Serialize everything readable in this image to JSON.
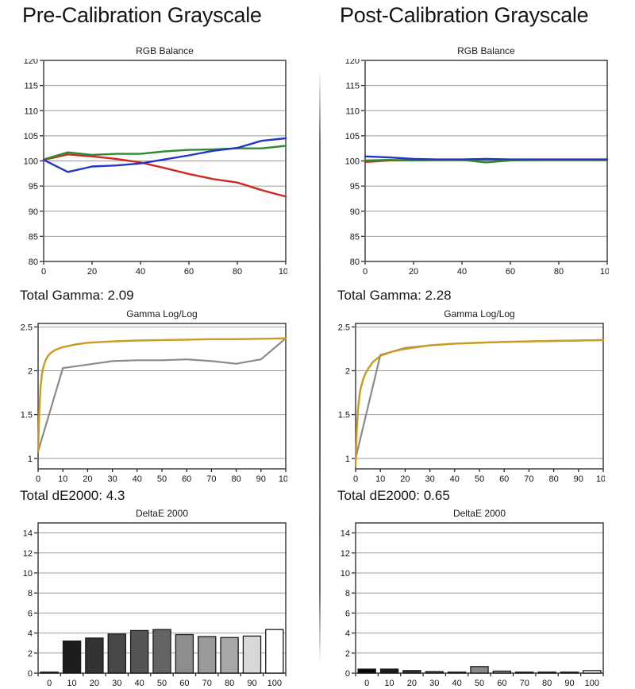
{
  "page": {
    "headers": {
      "left": "Pre-Calibration Grayscale",
      "right": "Post-Calibration Grayscale"
    }
  },
  "section_labels": {
    "pre_gamma": "Total Gamma: 2.09",
    "post_gamma": "Total Gamma: 2.28",
    "pre_de2000": "Total dE2000: 4.3",
    "post_de2000": "Total dE2000: 0.65"
  },
  "colors": {
    "red_line": "#cf2a21",
    "green_line": "#2e8b31",
    "blue_line": "#2336c4",
    "reference_yellow": "#cc9a20",
    "measured_gray": "#8a8a8a",
    "gridline": "#9e9e9e",
    "plot_border": "#404040",
    "tick": "#2b2b2b",
    "bar_outline": "#1a1a1a",
    "text": "#141414"
  },
  "chart_data": [
    {
      "id": "pre-rgb-balance",
      "type": "line",
      "title": "RGB Balance",
      "xlim": [
        0,
        100
      ],
      "ylim": [
        80,
        120
      ],
      "x_ticks": [
        [
          0,
          "0"
        ],
        [
          20,
          "20"
        ],
        [
          40,
          "40"
        ],
        [
          60,
          "60"
        ],
        [
          80,
          "80"
        ],
        [
          100,
          "100"
        ]
      ],
      "y_ticks": [
        [
          120,
          "120"
        ],
        [
          115,
          "115"
        ],
        [
          110,
          "110"
        ],
        [
          105,
          "105"
        ],
        [
          100,
          "100"
        ],
        [
          95,
          "95"
        ],
        [
          90,
          "90"
        ],
        [
          85,
          "85"
        ],
        [
          80,
          "80"
        ]
      ],
      "grid_y": [
        85,
        90,
        95,
        100,
        105,
        110,
        115
      ],
      "x": [
        0,
        10,
        20,
        30,
        40,
        50,
        60,
        70,
        80,
        90,
        100
      ],
      "series": [
        {
          "name": "red",
          "color_key": "red_line",
          "width": 2.4,
          "values": [
            100.2,
            101.3,
            100.9,
            100.4,
            99.7,
            98.6,
            97.4,
            96.4,
            95.7,
            94.2,
            92.9
          ]
        },
        {
          "name": "green",
          "color_key": "green_line",
          "width": 2.4,
          "values": [
            100.3,
            101.7,
            101.2,
            101.4,
            101.4,
            101.9,
            102.2,
            102.3,
            102.5,
            102.5,
            103.0
          ]
        },
        {
          "name": "blue",
          "color_key": "blue_line",
          "width": 2.4,
          "values": [
            100.2,
            97.8,
            98.9,
            99.1,
            99.5,
            100.3,
            101.1,
            102.0,
            102.6,
            104.0,
            104.5
          ]
        }
      ]
    },
    {
      "id": "post-rgb-balance",
      "type": "line",
      "title": "RGB Balance",
      "xlim": [
        0,
        100
      ],
      "ylim": [
        80,
        120
      ],
      "x_ticks": [
        [
          0,
          "0"
        ],
        [
          20,
          "20"
        ],
        [
          40,
          "40"
        ],
        [
          60,
          "60"
        ],
        [
          80,
          "80"
        ],
        [
          100,
          "100"
        ]
      ],
      "y_ticks": [
        [
          120,
          "120"
        ],
        [
          115,
          "115"
        ],
        [
          110,
          "110"
        ],
        [
          105,
          "105"
        ],
        [
          100,
          "100"
        ],
        [
          95,
          "95"
        ],
        [
          90,
          "90"
        ],
        [
          85,
          "85"
        ],
        [
          80,
          "80"
        ]
      ],
      "grid_y": [
        85,
        90,
        95,
        100,
        105,
        110,
        115
      ],
      "x": [
        0,
        10,
        20,
        30,
        40,
        50,
        60,
        70,
        80,
        90,
        100
      ],
      "series": [
        {
          "name": "red",
          "color_key": "red_line",
          "width": 2.4,
          "values": [
            99.8,
            100.1,
            100.1,
            100.2,
            100.2,
            100.3,
            100.2,
            100.2,
            100.2,
            100.2,
            100.2
          ]
        },
        {
          "name": "green",
          "color_key": "green_line",
          "width": 2.4,
          "values": [
            100.1,
            100.2,
            100.1,
            100.2,
            100.2,
            99.7,
            100.1,
            100.2,
            100.2,
            100.2,
            100.2
          ]
        },
        {
          "name": "blue",
          "color_key": "blue_line",
          "width": 2.4,
          "values": [
            100.9,
            100.7,
            100.4,
            100.3,
            100.3,
            100.4,
            100.3,
            100.3,
            100.3,
            100.3,
            100.3
          ]
        }
      ]
    },
    {
      "id": "pre-gamma",
      "type": "line",
      "title": "Gamma Log/Log",
      "xlim": [
        0,
        100
      ],
      "ylim": [
        0.88,
        2.54
      ],
      "x_ticks": [
        [
          0,
          "0"
        ],
        [
          10,
          "10"
        ],
        [
          20,
          "20"
        ],
        [
          30,
          "30"
        ],
        [
          40,
          "40"
        ],
        [
          50,
          "50"
        ],
        [
          60,
          "60"
        ],
        [
          70,
          "70"
        ],
        [
          80,
          "80"
        ],
        [
          90,
          "90"
        ],
        [
          100,
          "100"
        ]
      ],
      "y_ticks": [
        [
          2.5,
          "2.5"
        ],
        [
          2,
          "2"
        ],
        [
          1.5,
          "1.5"
        ],
        [
          1,
          "1"
        ]
      ],
      "grid_y": [
        1,
        1.5,
        2,
        2.5
      ],
      "x": [
        0,
        10,
        20,
        30,
        40,
        50,
        60,
        70,
        80,
        90,
        100
      ],
      "series": [
        {
          "name": "measured",
          "color_key": "measured_gray",
          "width": 2.2,
          "values": [
            1.08,
            2.03,
            2.07,
            2.11,
            2.12,
            2.12,
            2.13,
            2.11,
            2.08,
            2.13,
            2.37
          ]
        },
        {
          "name": "reference",
          "color_key": "reference_yellow",
          "width": 2.4,
          "x": [
            0,
            0.5,
            1,
            1.5,
            2,
            3,
            4,
            5,
            7,
            10,
            15,
            20,
            30,
            40,
            50,
            60,
            70,
            80,
            90,
            100
          ],
          "values": [
            1.08,
            1.55,
            1.82,
            1.95,
            2.03,
            2.12,
            2.17,
            2.2,
            2.24,
            2.27,
            2.3,
            2.32,
            2.335,
            2.345,
            2.35,
            2.355,
            2.36,
            2.36,
            2.365,
            2.37
          ]
        }
      ]
    },
    {
      "id": "post-gamma",
      "type": "line",
      "title": "Gamma Log/Log",
      "xlim": [
        0,
        100
      ],
      "ylim": [
        0.88,
        2.54
      ],
      "x_ticks": [
        [
          0,
          "0"
        ],
        [
          10,
          "10"
        ],
        [
          20,
          "20"
        ],
        [
          30,
          "30"
        ],
        [
          40,
          "40"
        ],
        [
          50,
          "50"
        ],
        [
          60,
          "60"
        ],
        [
          70,
          "70"
        ],
        [
          80,
          "80"
        ],
        [
          90,
          "90"
        ],
        [
          100,
          "100"
        ]
      ],
      "y_ticks": [
        [
          2.5,
          "2.5"
        ],
        [
          2,
          "2"
        ],
        [
          1.5,
          "1.5"
        ],
        [
          1,
          "1"
        ]
      ],
      "grid_y": [
        1,
        1.5,
        2,
        2.5
      ],
      "x": [
        0,
        10,
        20,
        30,
        40,
        50,
        60,
        70,
        80,
        90,
        100
      ],
      "series": [
        {
          "name": "measured",
          "color_key": "measured_gray",
          "width": 2.2,
          "values": [
            1.0,
            2.18,
            2.26,
            2.29,
            2.31,
            2.32,
            2.33,
            2.335,
            2.34,
            2.345,
            2.35
          ]
        },
        {
          "name": "reference",
          "color_key": "reference_yellow",
          "width": 2.4,
          "x": [
            0,
            0.5,
            1,
            1.5,
            2,
            3,
            4,
            5,
            7,
            10,
            15,
            20,
            30,
            40,
            50,
            60,
            70,
            80,
            90,
            100
          ],
          "values": [
            0.92,
            1.35,
            1.57,
            1.7,
            1.79,
            1.9,
            1.97,
            2.02,
            2.1,
            2.17,
            2.22,
            2.25,
            2.29,
            2.31,
            2.32,
            2.33,
            2.335,
            2.34,
            2.345,
            2.35
          ]
        }
      ]
    },
    {
      "id": "pre-de2000",
      "type": "bar",
      "title": "DeltaE 2000",
      "ylim": [
        0,
        15
      ],
      "y_ticks": [
        [
          14,
          "14"
        ],
        [
          12,
          "12"
        ],
        [
          10,
          "10"
        ],
        [
          8,
          "8"
        ],
        [
          6,
          "6"
        ],
        [
          4,
          "4"
        ],
        [
          2,
          "2"
        ],
        [
          0,
          "0"
        ]
      ],
      "grid_y": [
        2,
        4,
        6,
        8,
        10,
        12,
        14
      ],
      "categories": [
        "0",
        "10",
        "20",
        "30",
        "40",
        "50",
        "60",
        "70",
        "80",
        "90",
        "100"
      ],
      "values": [
        0.1,
        3.2,
        3.5,
        3.9,
        4.25,
        4.35,
        3.85,
        3.65,
        3.55,
        3.7,
        4.35
      ],
      "bar_fills": [
        "#050505",
        "#1c1c1c",
        "#333333",
        "#484848",
        "#555555",
        "#646464",
        "#8d8d8d",
        "#9a9a9a",
        "#a8a8a8",
        "#d8d8d8",
        "#ffffff"
      ]
    },
    {
      "id": "post-de2000",
      "type": "bar",
      "title": "DeltaE 2000",
      "ylim": [
        0,
        15
      ],
      "y_ticks": [
        [
          14,
          "14"
        ],
        [
          12,
          "12"
        ],
        [
          10,
          "10"
        ],
        [
          8,
          "8"
        ],
        [
          6,
          "6"
        ],
        [
          4,
          "4"
        ],
        [
          2,
          "2"
        ],
        [
          0,
          "0"
        ]
      ],
      "grid_y": [
        2,
        4,
        6,
        8,
        10,
        12,
        14
      ],
      "categories": [
        "0",
        "10",
        "20",
        "30",
        "40",
        "50",
        "60",
        "70",
        "80",
        "90",
        "100"
      ],
      "values": [
        0.4,
        0.4,
        0.25,
        0.15,
        0.1,
        0.65,
        0.2,
        0.1,
        0.1,
        0.1,
        0.25
      ],
      "bar_fills": [
        "#050505",
        "#1c1c1c",
        "#333333",
        "#484848",
        "#555555",
        "#8a8a8a",
        "#8d8d8d",
        "#9a9a9a",
        "#a8a8a8",
        "#d8d8d8",
        "#ffffff"
      ]
    }
  ]
}
